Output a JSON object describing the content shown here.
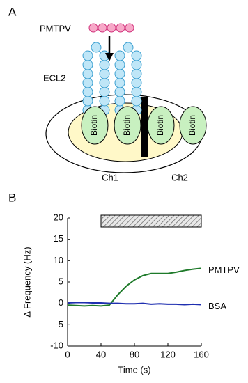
{
  "panels": [
    "A",
    "B"
  ],
  "diagram": {
    "ligand": "PMTPV",
    "loop": "ECL2",
    "spots": [
      "Biotin",
      "Biotin",
      "Biotin",
      "Biotin"
    ],
    "channels": [
      "Ch1",
      "Ch2"
    ]
  },
  "chart_data": {
    "type": "line",
    "x_label": "Time (s)",
    "y_label": "Δ Frequency (Hz)",
    "x": [
      0,
      10,
      20,
      30,
      40,
      50,
      60,
      70,
      80,
      90,
      100,
      110,
      120,
      130,
      140,
      150,
      160
    ],
    "series": [
      {
        "name": "PMTPV",
        "color": "#1e7a2a",
        "values": [
          -0.4,
          -0.5,
          -0.6,
          -0.5,
          -0.6,
          -0.4,
          2,
          4,
          5.5,
          6.5,
          7,
          7,
          7,
          7.3,
          7.7,
          8,
          8.2
        ]
      },
      {
        "name": "BSA",
        "color": "#1f2fb0",
        "values": [
          0.1,
          0.2,
          0.2,
          0.1,
          0.1,
          0,
          0,
          -0.1,
          -0.1,
          0,
          -0.2,
          -0.1,
          -0.2,
          -0.2,
          -0.3,
          -0.2,
          -0.3
        ]
      }
    ],
    "shaded_interval": [
      40,
      160
    ],
    "xlim": [
      0,
      160
    ],
    "ylim": [
      -10,
      20
    ],
    "xticks": [
      0,
      40,
      80,
      120,
      160
    ],
    "yticks": [
      -10,
      -5,
      0,
      5,
      10,
      15,
      20
    ]
  }
}
